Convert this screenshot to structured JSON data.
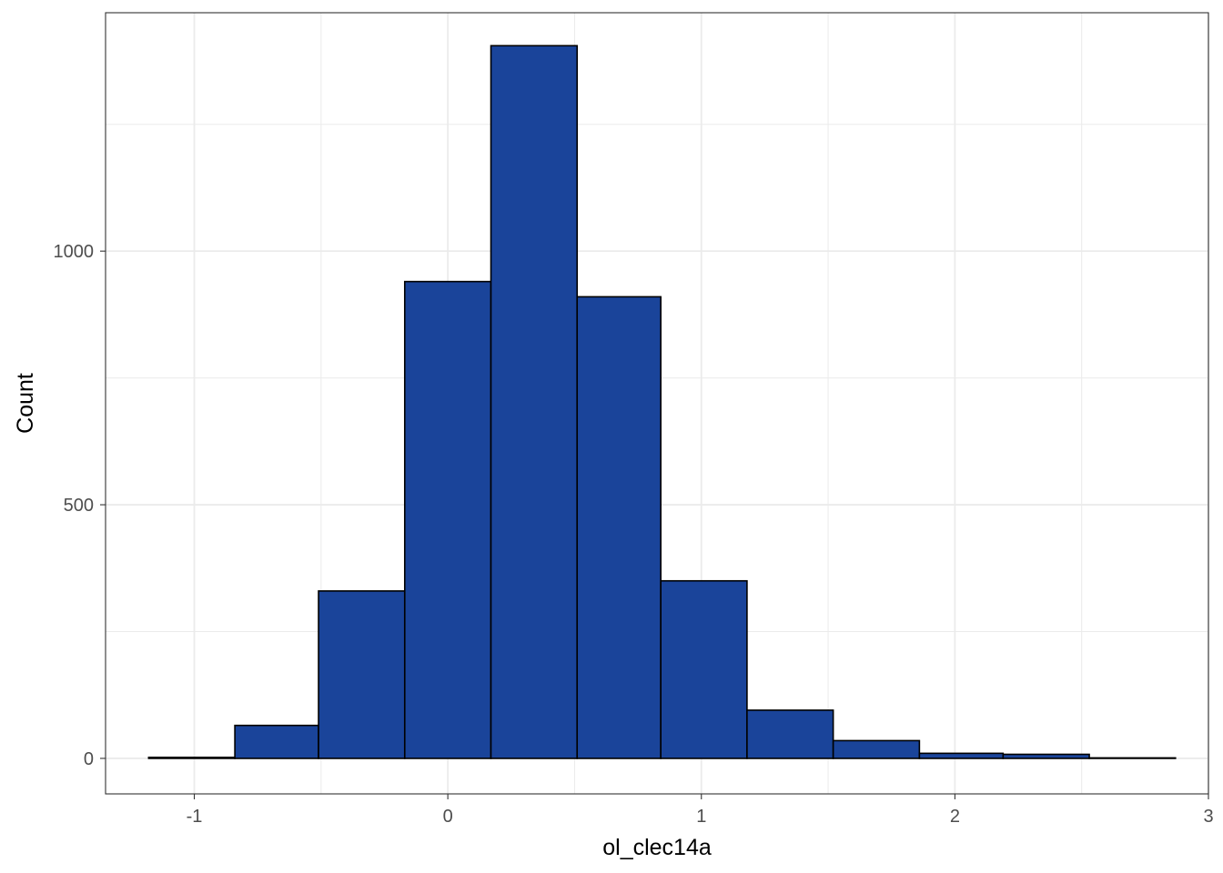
{
  "chart_data": {
    "type": "bar",
    "subtype": "histogram",
    "title": "",
    "xlabel": "ol_clec14a",
    "ylabel": "Count",
    "xlim": [
      -1.35,
      3.0
    ],
    "ylim": [
      -70,
      1470
    ],
    "x_ticks": [
      -1,
      0,
      1,
      2,
      3
    ],
    "x_tick_labels": [
      "-1",
      "0",
      "1",
      "2",
      "3"
    ],
    "y_ticks": [
      0,
      500,
      1000
    ],
    "y_tick_labels": [
      "0",
      "500",
      "1000"
    ],
    "y_minor_ticks": [
      250,
      750,
      1250
    ],
    "x_minor_ticks": [
      -0.5,
      0.5,
      1.5,
      2.5
    ],
    "bins": [
      {
        "x0": -1.18,
        "x1": -0.84,
        "count": 2
      },
      {
        "x0": -0.84,
        "x1": -0.51,
        "count": 65
      },
      {
        "x0": -0.51,
        "x1": -0.17,
        "count": 330
      },
      {
        "x0": -0.17,
        "x1": 0.17,
        "count": 940
      },
      {
        "x0": 0.17,
        "x1": 0.51,
        "count": 1405
      },
      {
        "x0": 0.51,
        "x1": 0.84,
        "count": 910
      },
      {
        "x0": 0.84,
        "x1": 1.18,
        "count": 350
      },
      {
        "x0": 1.18,
        "x1": 1.52,
        "count": 95
      },
      {
        "x0": 1.52,
        "x1": 1.86,
        "count": 35
      },
      {
        "x0": 1.86,
        "x1": 2.19,
        "count": 10
      },
      {
        "x0": 2.19,
        "x1": 2.53,
        "count": 8
      },
      {
        "x0": 2.53,
        "x1": 2.87,
        "count": 1
      }
    ],
    "bar_fill": "#1A449A",
    "bar_stroke": "#000000",
    "grid": true,
    "grid_color": "#EBEBEB",
    "panel_border_color": "#333333",
    "legend": "none"
  }
}
